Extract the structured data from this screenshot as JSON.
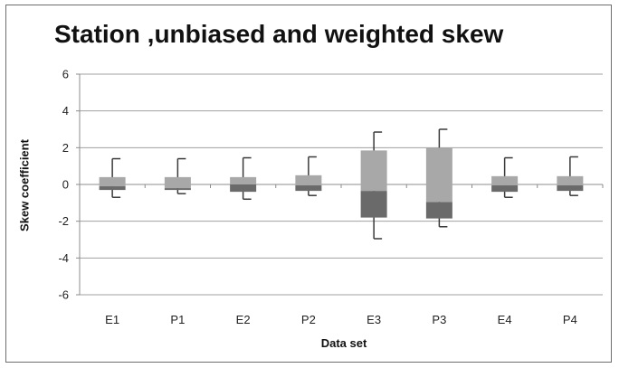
{
  "chart_data": {
    "type": "box",
    "title": "Station ,unbiased and weighted skew",
    "xlabel": "Data set",
    "ylabel": "Skew coefficient",
    "ylim": [
      -6,
      6
    ],
    "yticks": [
      -6,
      -4,
      -2,
      0,
      2,
      4,
      6
    ],
    "grid": true,
    "categories": [
      "E1",
      "P1",
      "E2",
      "P2",
      "E3",
      "P3",
      "E4",
      "P4"
    ],
    "boxes": [
      {
        "label": "E1",
        "whisker_low": -0.7,
        "q1": -0.3,
        "median": -0.1,
        "q3": 0.4,
        "whisker_high": 1.4
      },
      {
        "label": "P1",
        "whisker_low": -0.5,
        "q1": -0.3,
        "median": -0.2,
        "q3": 0.4,
        "whisker_high": 1.4
      },
      {
        "label": "E2",
        "whisker_low": -0.8,
        "q1": -0.4,
        "median": 0.0,
        "q3": 0.4,
        "whisker_high": 1.45
      },
      {
        "label": "P2",
        "whisker_low": -0.6,
        "q1": -0.35,
        "median": -0.05,
        "q3": 0.5,
        "whisker_high": 1.5
      },
      {
        "label": "E3",
        "whisker_low": -2.95,
        "q1": -1.8,
        "median": -0.35,
        "q3": 1.85,
        "whisker_high": 2.85
      },
      {
        "label": "P3",
        "whisker_low": -2.3,
        "q1": -1.85,
        "median": -0.95,
        "q3": 2.0,
        "whisker_high": 3.0
      },
      {
        "label": "E4",
        "whisker_low": -0.7,
        "q1": -0.4,
        "median": -0.05,
        "q3": 0.45,
        "whisker_high": 1.45
      },
      {
        "label": "P4",
        "whisker_low": -0.6,
        "q1": -0.35,
        "median": -0.05,
        "q3": 0.45,
        "whisker_high": 1.5
      }
    ],
    "colors": {
      "upper_box": "#a8a8a8",
      "lower_box": "#6a6a6a",
      "whisker": "#3a3a3a",
      "grid": "#a0a0a0",
      "axis": "#8c8c8c"
    }
  }
}
